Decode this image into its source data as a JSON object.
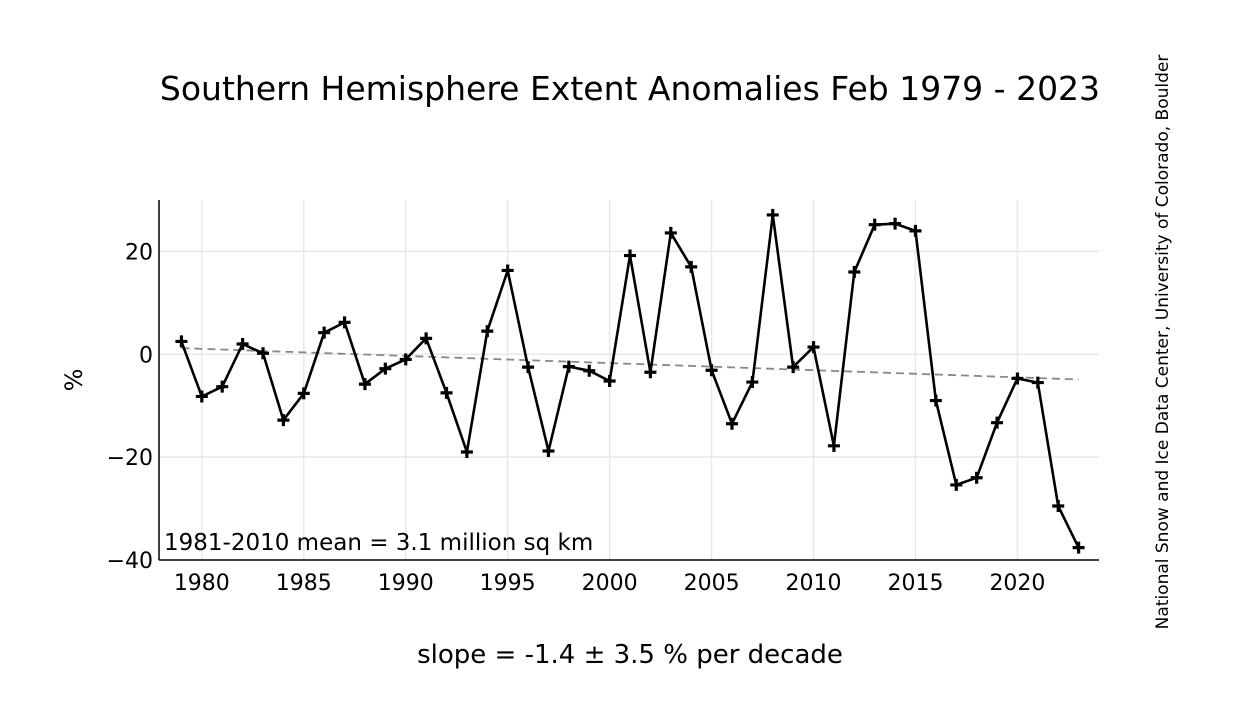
{
  "chart_data": {
    "type": "line",
    "title": "Southern Hemisphere Extent Anomalies Feb 1979 - 2023",
    "ylabel": "%",
    "xlabel": "",
    "annotation": "1981-2010 mean = 3.1 million sq km",
    "footer": "slope = -1.4 ± 3.5 % per decade",
    "credit": "National Snow and Ice Data Center, University of Colorado, Boulder",
    "xlim": [
      1977.9,
      2024.0
    ],
    "ylim": [
      -40,
      30
    ],
    "xticks": [
      1980,
      1985,
      1990,
      1995,
      2000,
      2005,
      2010,
      2015,
      2020
    ],
    "yticks": [
      -40,
      -20,
      0,
      20
    ],
    "ytick_labels": [
      "−40",
      "−20",
      "0",
      "20"
    ],
    "grid": true,
    "x": [
      1979,
      1980,
      1981,
      1982,
      1983,
      1984,
      1985,
      1986,
      1987,
      1988,
      1989,
      1990,
      1991,
      1992,
      1993,
      1994,
      1995,
      1996,
      1997,
      1998,
      1999,
      2000,
      2001,
      2002,
      2003,
      2004,
      2005,
      2006,
      2007,
      2008,
      2009,
      2010,
      2011,
      2012,
      2013,
      2014,
      2015,
      2016,
      2017,
      2018,
      2019,
      2020,
      2021,
      2022,
      2023
    ],
    "series": [
      {
        "values": [
          2.5,
          -8.2,
          -6.3,
          2.0,
          0.2,
          -12.8,
          -7.6,
          4.2,
          6.2,
          -5.8,
          -2.8,
          -1.0,
          3.1,
          -7.5,
          -19.0,
          4.5,
          16.3,
          -2.5,
          -18.8,
          -2.4,
          -3.2,
          -5.2,
          19.2,
          -3.5,
          23.6,
          17.0,
          -3.1,
          -13.5,
          -5.4,
          27.1,
          -2.5,
          1.4,
          -17.8,
          16.0,
          25.2,
          25.4,
          24.0,
          -9.0,
          -25.4,
          -24.0,
          -13.3,
          -4.7,
          -5.5,
          -29.5,
          -37.6
        ],
        "color": "#000000"
      }
    ],
    "trend": {
      "y_start": 1.2,
      "y_end": -4.9,
      "color": "#888888"
    }
  }
}
